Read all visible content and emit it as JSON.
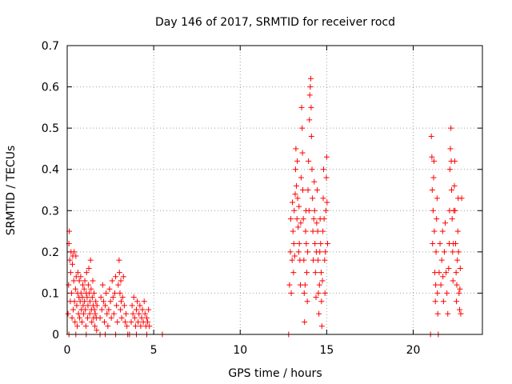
{
  "chart_data": {
    "type": "scatter",
    "title": "Day 146 of 2017, SRMTID for receiver rocd",
    "xlabel": "GPS time / hours",
    "ylabel": "SRMTID / TECUs",
    "xlim": [
      0,
      24
    ],
    "ylim": [
      0,
      0.7
    ],
    "xticks": [
      0,
      5,
      10,
      15,
      20
    ],
    "xtick_labels": [
      "0",
      "5",
      "10",
      "15",
      "20"
    ],
    "yticks": [
      0,
      0.1,
      0.2,
      0.3,
      0.4,
      0.5,
      0.6,
      0.7
    ],
    "ytick_labels": [
      "0",
      "0.1",
      "0.2",
      "0.3",
      "0.4",
      "0.5",
      "0.6",
      "0.7"
    ],
    "grid": true,
    "marker": "+",
    "marker_color": "#ff0000",
    "series": [
      {
        "name": "SRMTID",
        "points": [
          [
            0.05,
            0.05
          ],
          [
            0.08,
            0.12
          ],
          [
            0.1,
            0.22
          ],
          [
            0.12,
            0.25
          ],
          [
            0.15,
            0.18
          ],
          [
            0.18,
            0.08
          ],
          [
            0.2,
            0.15
          ],
          [
            0.22,
            0.2
          ],
          [
            0.25,
            0.1
          ],
          [
            0.28,
            0.04
          ],
          [
            0.3,
            0.17
          ],
          [
            0.32,
            0.19
          ],
          [
            0.35,
            0.06
          ],
          [
            0.38,
            0.13
          ],
          [
            0.4,
            0.2
          ],
          [
            0.42,
            0.08
          ],
          [
            0.45,
            0.03
          ],
          [
            0.48,
            0.11
          ],
          [
            0.5,
            0.19
          ],
          [
            0.52,
            0.14
          ],
          [
            0.55,
            0.07
          ],
          [
            0.58,
            0.02
          ],
          [
            0.6,
            0.1
          ],
          [
            0.62,
            0.15
          ],
          [
            0.65,
            0.05
          ],
          [
            0.68,
            0.09
          ],
          [
            0.7,
            0.13
          ],
          [
            0.72,
            0.04
          ],
          [
            0.75,
            0.08
          ],
          [
            0.78,
            0.14
          ],
          [
            0.8,
            0.1
          ],
          [
            0.82,
            0.06
          ],
          [
            0.85,
            0.03
          ],
          [
            0.88,
            0.09
          ],
          [
            0.9,
            0.12
          ],
          [
            0.92,
            0.07
          ],
          [
            0.95,
            0.05
          ],
          [
            0.98,
            0.11
          ],
          [
            1.0,
            0.08
          ],
          [
            1.02,
            0.13
          ],
          [
            1.05,
            0.06
          ],
          [
            1.08,
            0.02
          ],
          [
            1.1,
            0.1
          ],
          [
            1.12,
            0.15
          ],
          [
            1.15,
            0.09
          ],
          [
            1.18,
            0.04
          ],
          [
            1.2,
            0.07
          ],
          [
            1.22,
            0.12
          ],
          [
            1.25,
            0.16
          ],
          [
            1.28,
            0.1
          ],
          [
            1.3,
            0.05
          ],
          [
            1.32,
            0.08
          ],
          [
            1.35,
            0.18
          ],
          [
            1.38,
            0.11
          ],
          [
            1.4,
            0.06
          ],
          [
            1.42,
            0.03
          ],
          [
            1.45,
            0.09
          ],
          [
            1.48,
            0.13
          ],
          [
            1.5,
            0.07
          ],
          [
            1.52,
            0.04
          ],
          [
            1.55,
            0.1
          ],
          [
            1.58,
            0.06
          ],
          [
            1.6,
            0.02
          ],
          [
            1.62,
            0.05
          ],
          [
            1.65,
            0.08
          ],
          [
            1.68,
            0.04
          ],
          [
            1.7,
            0.01
          ],
          [
            1.72,
            0.07
          ],
          [
            1.9,
            0.04
          ],
          [
            1.95,
            0.09
          ],
          [
            2.0,
            0.06
          ],
          [
            2.05,
            0.12
          ],
          [
            2.1,
            0.08
          ],
          [
            2.15,
            0.03
          ],
          [
            2.2,
            0.07
          ],
          [
            2.25,
            0.1
          ],
          [
            2.3,
            0.05
          ],
          [
            2.35,
            0.02
          ],
          [
            2.4,
            0.06
          ],
          [
            2.45,
            0.11
          ],
          [
            2.5,
            0.08
          ],
          [
            2.55,
            0.04
          ],
          [
            2.6,
            0.13
          ],
          [
            2.65,
            0.09
          ],
          [
            2.7,
            0.05
          ],
          [
            2.75,
            0.1
          ],
          [
            2.8,
            0.14
          ],
          [
            2.85,
            0.07
          ],
          [
            2.9,
            0.03
          ],
          [
            2.95,
            0.12
          ],
          [
            3.0,
            0.18
          ],
          [
            3.02,
            0.15
          ],
          [
            3.05,
            0.1
          ],
          [
            3.08,
            0.06
          ],
          [
            3.1,
            0.13
          ],
          [
            3.12,
            0.08
          ],
          [
            3.15,
            0.04
          ],
          [
            3.2,
            0.09
          ],
          [
            3.25,
            0.14
          ],
          [
            3.3,
            0.07
          ],
          [
            3.35,
            0.03
          ],
          [
            3.4,
            0.05
          ],
          [
            3.45,
            0.02
          ],
          [
            3.7,
            0.03
          ],
          [
            3.75,
            0.07
          ],
          [
            3.8,
            0.05
          ],
          [
            3.85,
            0.09
          ],
          [
            3.9,
            0.04
          ],
          [
            3.95,
            0.02
          ],
          [
            4.0,
            0.06
          ],
          [
            4.05,
            0.08
          ],
          [
            4.1,
            0.03
          ],
          [
            4.15,
            0.05
          ],
          [
            4.2,
            0.07
          ],
          [
            4.25,
            0.02
          ],
          [
            4.3,
            0.04
          ],
          [
            4.35,
            0.06
          ],
          [
            4.4,
            0.03
          ],
          [
            4.45,
            0.08
          ],
          [
            4.5,
            0.05
          ],
          [
            4.55,
            0.02
          ],
          [
            4.6,
            0.04
          ],
          [
            4.65,
            0.03
          ],
          [
            4.7,
            0.06
          ],
          [
            4.75,
            0.02
          ],
          [
            0.1,
            0.0
          ],
          [
            0.5,
            0.0
          ],
          [
            1.1,
            0.0
          ],
          [
            1.9,
            0.0
          ],
          [
            2.2,
            0.0
          ],
          [
            2.8,
            0.0
          ],
          [
            3.5,
            0.0
          ],
          [
            3.6,
            0.0
          ],
          [
            4.0,
            0.0
          ],
          [
            4.6,
            0.0
          ],
          [
            5.5,
            0.0
          ],
          [
            12.8,
            0.0
          ],
          [
            12.85,
            0.12
          ],
          [
            12.9,
            0.2
          ],
          [
            12.92,
            0.28
          ],
          [
            12.95,
            0.1
          ],
          [
            13.0,
            0.18
          ],
          [
            13.02,
            0.32
          ],
          [
            13.05,
            0.25
          ],
          [
            13.08,
            0.15
          ],
          [
            13.1,
            0.22
          ],
          [
            13.12,
            0.3
          ],
          [
            13.15,
            0.19
          ],
          [
            13.18,
            0.34
          ],
          [
            13.2,
            0.4
          ],
          [
            13.22,
            0.45
          ],
          [
            13.25,
            0.36
          ],
          [
            13.28,
            0.28
          ],
          [
            13.3,
            0.42
          ],
          [
            13.32,
            0.33
          ],
          [
            13.35,
            0.26
          ],
          [
            13.38,
            0.2
          ],
          [
            13.4,
            0.31
          ],
          [
            13.42,
            0.22
          ],
          [
            13.45,
            0.18
          ],
          [
            13.48,
            0.12
          ],
          [
            13.5,
            0.27
          ],
          [
            13.52,
            0.38
          ],
          [
            13.55,
            0.55
          ],
          [
            13.58,
            0.5
          ],
          [
            13.6,
            0.44
          ],
          [
            13.62,
            0.35
          ],
          [
            13.65,
            0.28
          ],
          [
            13.68,
            0.18
          ],
          [
            13.7,
            0.1
          ],
          [
            13.72,
            0.03
          ],
          [
            13.75,
            0.12
          ],
          [
            13.78,
            0.25
          ],
          [
            13.8,
            0.3
          ],
          [
            13.82,
            0.22
          ],
          [
            13.85,
            0.15
          ],
          [
            13.88,
            0.08
          ],
          [
            13.9,
            0.2
          ],
          [
            13.92,
            0.35
          ],
          [
            13.95,
            0.42
          ],
          [
            13.98,
            0.3
          ],
          [
            14.0,
            0.52
          ],
          [
            14.02,
            0.58
          ],
          [
            14.05,
            0.6
          ],
          [
            14.08,
            0.62
          ],
          [
            14.1,
            0.55
          ],
          [
            14.12,
            0.48
          ],
          [
            14.15,
            0.4
          ],
          [
            14.18,
            0.33
          ],
          [
            14.2,
            0.25
          ],
          [
            14.22,
            0.18
          ],
          [
            14.25,
            0.28
          ],
          [
            14.28,
            0.37
          ],
          [
            14.3,
            0.3
          ],
          [
            14.32,
            0.22
          ],
          [
            14.35,
            0.15
          ],
          [
            14.38,
            0.09
          ],
          [
            14.4,
            0.2
          ],
          [
            14.42,
            0.27
          ],
          [
            14.45,
            0.35
          ],
          [
            14.48,
            0.25
          ],
          [
            14.5,
            0.18
          ],
          [
            14.52,
            0.1
          ],
          [
            14.55,
            0.05
          ],
          [
            14.58,
            0.12
          ],
          [
            14.6,
            0.2
          ],
          [
            14.62,
            0.28
          ],
          [
            14.65,
            0.22
          ],
          [
            14.68,
            0.15
          ],
          [
            14.7,
            0.08
          ],
          [
            14.72,
            0.02
          ],
          [
            14.75,
            0.13
          ],
          [
            14.78,
            0.25
          ],
          [
            14.8,
            0.33
          ],
          [
            14.82,
            0.4
          ],
          [
            14.85,
            0.28
          ],
          [
            14.88,
            0.18
          ],
          [
            14.9,
            0.1
          ],
          [
            14.92,
            0.2
          ],
          [
            14.95,
            0.3
          ],
          [
            14.98,
            0.38
          ],
          [
            15.0,
            0.43
          ],
          [
            15.02,
            0.32
          ],
          [
            15.05,
            0.22
          ],
          [
            21.0,
            0.0
          ],
          [
            21.05,
            0.48
          ],
          [
            21.08,
            0.43
          ],
          [
            21.1,
            0.35
          ],
          [
            21.12,
            0.22
          ],
          [
            21.15,
            0.3
          ],
          [
            21.18,
            0.38
          ],
          [
            21.2,
            0.42
          ],
          [
            21.22,
            0.25
          ],
          [
            21.25,
            0.15
          ],
          [
            21.28,
            0.08
          ],
          [
            21.3,
            0.12
          ],
          [
            21.32,
            0.2
          ],
          [
            21.35,
            0.28
          ],
          [
            21.38,
            0.33
          ],
          [
            21.4,
            0.1
          ],
          [
            21.42,
            0.05
          ],
          [
            21.45,
            0.0
          ],
          [
            21.5,
            0.15
          ],
          [
            21.55,
            0.22
          ],
          [
            21.6,
            0.12
          ],
          [
            21.65,
            0.18
          ],
          [
            21.7,
            0.25
          ],
          [
            21.72,
            0.14
          ],
          [
            21.75,
            0.08
          ],
          [
            21.8,
            0.2
          ],
          [
            21.85,
            0.27
          ],
          [
            21.9,
            0.15
          ],
          [
            21.95,
            0.1
          ],
          [
            22.0,
            0.05
          ],
          [
            22.05,
            0.16
          ],
          [
            22.08,
            0.22
          ],
          [
            22.1,
            0.3
          ],
          [
            22.12,
            0.4
          ],
          [
            22.15,
            0.45
          ],
          [
            22.18,
            0.5
          ],
          [
            22.2,
            0.42
          ],
          [
            22.22,
            0.35
          ],
          [
            22.25,
            0.28
          ],
          [
            22.28,
            0.2
          ],
          [
            22.3,
            0.13
          ],
          [
            22.32,
            0.22
          ],
          [
            22.35,
            0.3
          ],
          [
            22.38,
            0.36
          ],
          [
            22.4,
            0.42
          ],
          [
            22.42,
            0.3
          ],
          [
            22.45,
            0.22
          ],
          [
            22.48,
            0.15
          ],
          [
            22.5,
            0.08
          ],
          [
            22.52,
            0.12
          ],
          [
            22.55,
            0.18
          ],
          [
            22.58,
            0.25
          ],
          [
            22.6,
            0.33
          ],
          [
            22.62,
            0.2
          ],
          [
            22.65,
            0.1
          ],
          [
            22.68,
            0.06
          ],
          [
            22.7,
            0.11
          ],
          [
            22.72,
            0.16
          ],
          [
            22.75,
            0.05
          ],
          [
            22.8,
            0.33
          ]
        ]
      }
    ]
  }
}
